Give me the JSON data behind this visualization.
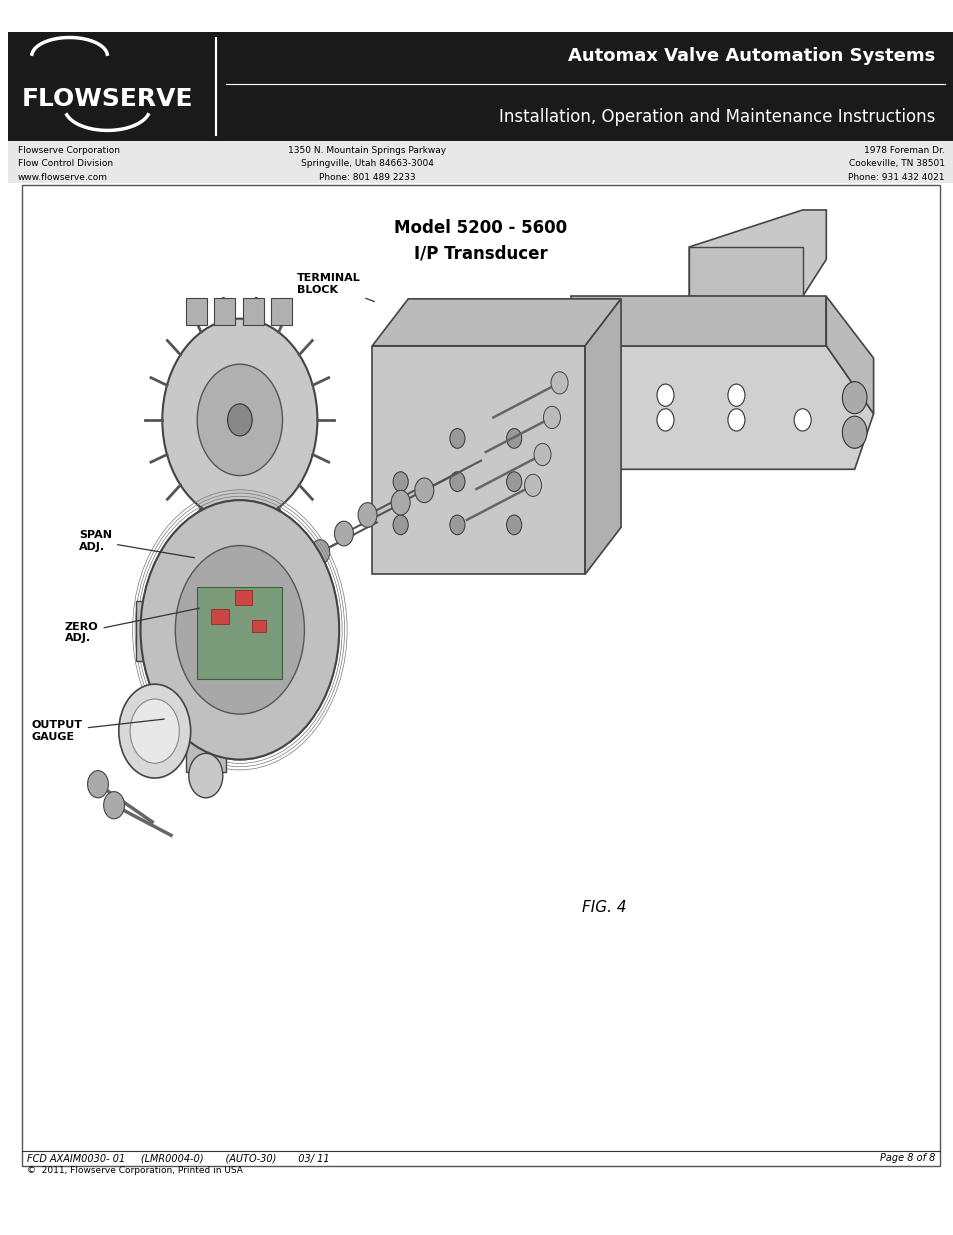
{
  "page_bg": "#ffffff",
  "header_bg": "#1a1a1a",
  "header_title1": "Automax Valve Automation Systems",
  "header_title2": "Installation, Operation and Maintenance Instructions",
  "flowserve_logo": "FLOWSERVE",
  "company_col1_lines": [
    "Flowserve Corporation",
    "Flow Control Division",
    "www.flowserve.com"
  ],
  "company_col2_lines": [
    "1350 N. Mountain Springs Parkway",
    "Springville, Utah 84663-3004",
    "Phone: 801 489 2233"
  ],
  "company_col3_lines": [
    "1978 Foreman Dr.",
    "Cookeville, TN 38501",
    "Phone: 931 432 4021"
  ],
  "info_bg": "#e8e8e8",
  "diagram_title_line1": "Model 5200 - 5600",
  "diagram_title_line2": "I/P Transducer",
  "fig_label": "FIG. 4",
  "footer_left": "FCD AXAIM0030- 01     (LMR0004-0)       (AUTO-30)       03/ 11",
  "footer_right": "Page 8 of 8",
  "footer_copyright": "©  2011, Flowserve Corporation, Printed in USA",
  "border_color": "#555555",
  "text_color": "#000000",
  "white": "#ffffff",
  "gray_light": "#cccccc",
  "gray_mid": "#999999",
  "gray_dark": "#555555"
}
